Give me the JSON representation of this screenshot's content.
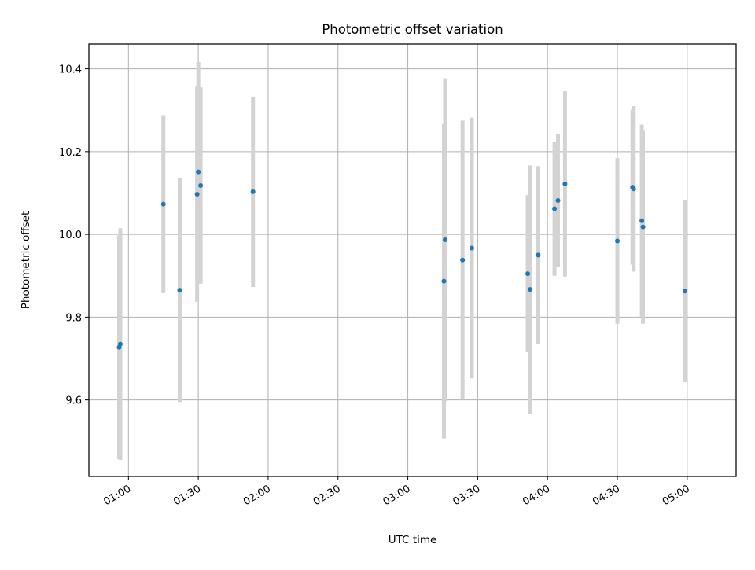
{
  "chart_data": {
    "type": "scatter",
    "title": "Photometric offset variation",
    "xlabel": "UTC time",
    "ylabel": "Photometric offset",
    "x_axis_kind": "time",
    "xlim": [
      "00:43",
      "05:21"
    ],
    "ylim": [
      9.415,
      10.46
    ],
    "xticks": [
      "01:00",
      "01:30",
      "02:00",
      "02:30",
      "03:00",
      "03:30",
      "04:00",
      "04:30",
      "05:00"
    ],
    "yticks": [
      "9.6",
      "9.8",
      "10.0",
      "10.2",
      "10.4"
    ],
    "grid": true,
    "legend": "none",
    "colors": {
      "points": "#1f77b4",
      "error_bars": "#d3d3d3",
      "grid": "#b0b0b0"
    },
    "points": [
      {
        "t": "00:56:00",
        "y": 9.727,
        "err": 0.27
      },
      {
        "t": "00:56:30",
        "y": 9.735,
        "err": 0.28
      },
      {
        "t": "01:15:00",
        "y": 10.073,
        "err": 0.215
      },
      {
        "t": "01:22:00",
        "y": 9.865,
        "err": 0.27
      },
      {
        "t": "01:29:30",
        "y": 10.097,
        "err": 0.26
      },
      {
        "t": "01:30:00",
        "y": 10.151,
        "err": 0.265
      },
      {
        "t": "01:31:00",
        "y": 10.118,
        "err": 0.237
      },
      {
        "t": "01:53:30",
        "y": 10.103,
        "err": 0.23
      },
      {
        "t": "03:15:30",
        "y": 9.887,
        "err": 0.38
      },
      {
        "t": "03:16:00",
        "y": 9.987,
        "err": 0.39
      },
      {
        "t": "03:23:30",
        "y": 9.938,
        "err": 0.337
      },
      {
        "t": "03:27:30",
        "y": 9.967,
        "err": 0.315
      },
      {
        "t": "03:51:30",
        "y": 9.905,
        "err": 0.19
      },
      {
        "t": "03:52:30",
        "y": 9.867,
        "err": 0.3
      },
      {
        "t": "03:56:00",
        "y": 9.95,
        "err": 0.215
      },
      {
        "t": "04:03:00",
        "y": 10.062,
        "err": 0.162
      },
      {
        "t": "04:04:30",
        "y": 10.082,
        "err": 0.16
      },
      {
        "t": "04:07:30",
        "y": 10.122,
        "err": 0.224
      },
      {
        "t": "04:30:00",
        "y": 9.984,
        "err": 0.2
      },
      {
        "t": "04:36:30",
        "y": 10.114,
        "err": 0.187
      },
      {
        "t": "04:37:00",
        "y": 10.11,
        "err": 0.2
      },
      {
        "t": "04:40:30",
        "y": 10.033,
        "err": 0.232
      },
      {
        "t": "04:41:00",
        "y": 10.018,
        "err": 0.234
      },
      {
        "t": "04:59:00",
        "y": 9.863,
        "err": 0.22
      }
    ]
  }
}
